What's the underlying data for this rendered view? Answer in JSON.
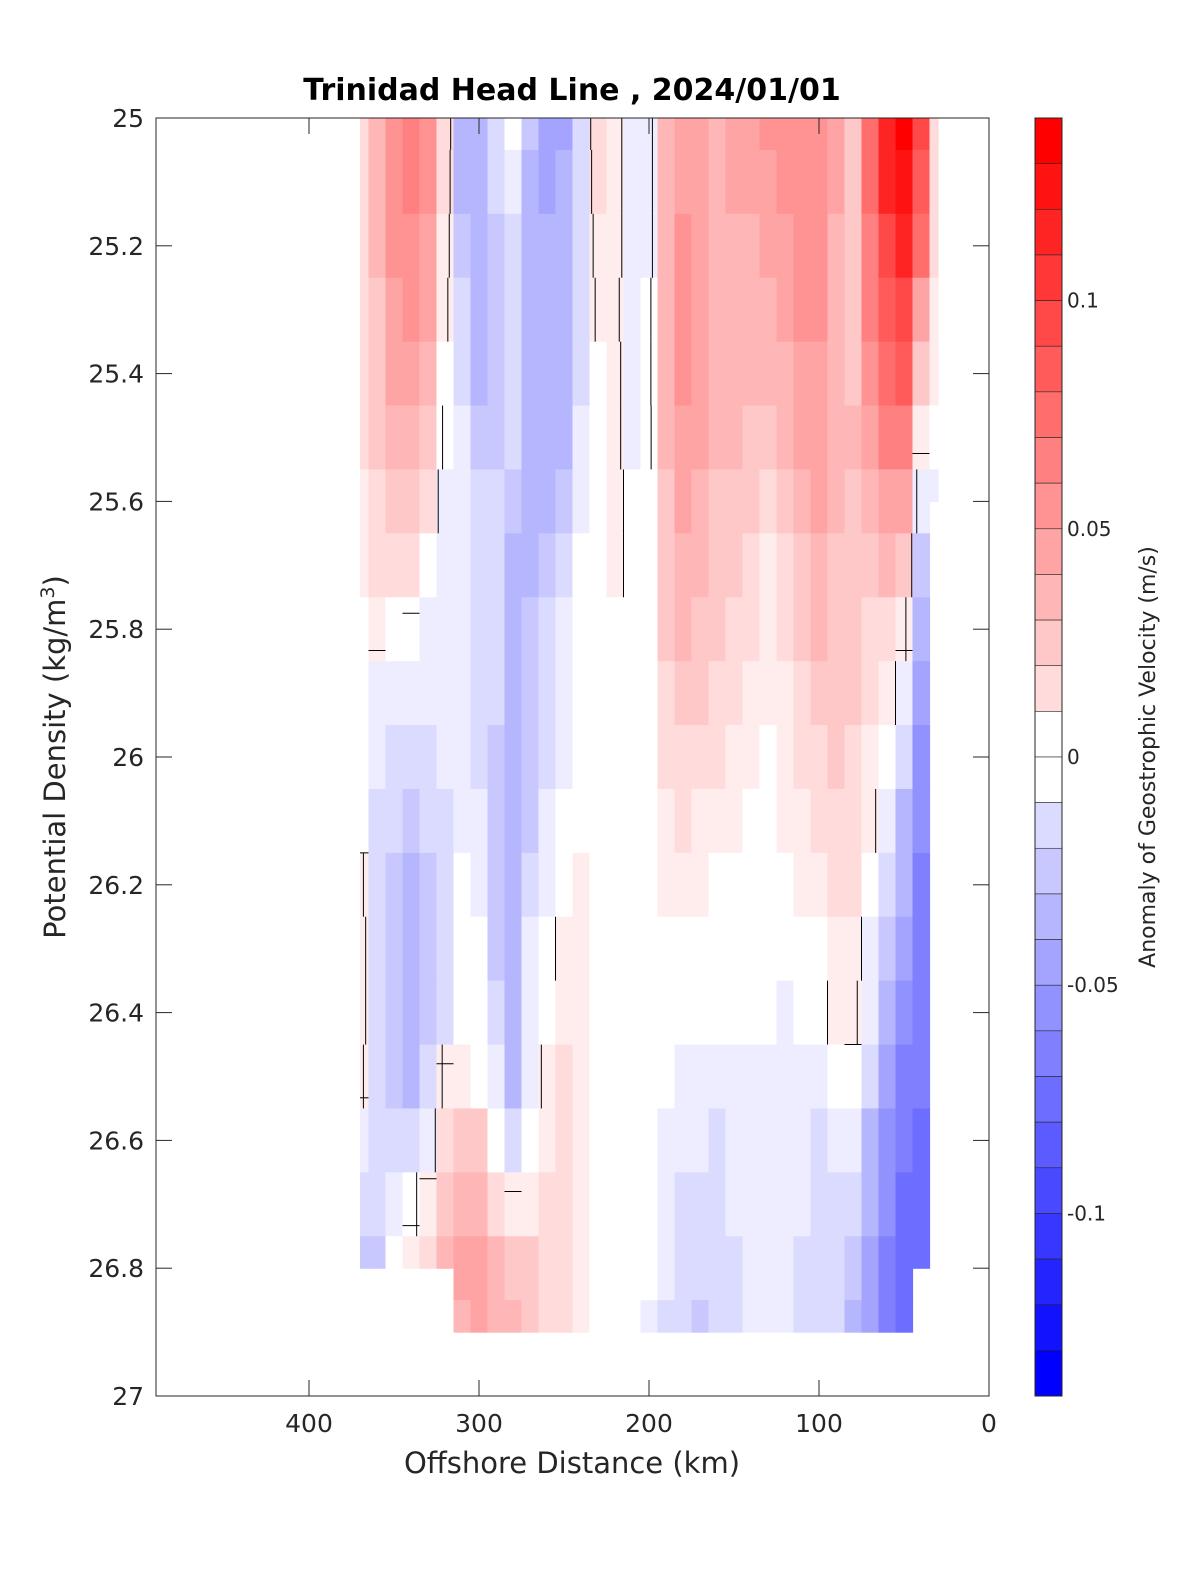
{
  "chart_data": {
    "type": "heatmap",
    "title": "Trinidad Head Line , 2024/01/01",
    "xlabel": "Offshore Distance (km)",
    "ylabel_main": "Potential Density (kg/m",
    "ylabel_sup": "3",
    "ylabel_close": ")",
    "xlim": [
      490,
      0
    ],
    "x_reversed": true,
    "ylim": [
      25,
      27
    ],
    "y_reversed": true,
    "xticks": [
      400,
      300,
      200,
      100,
      0
    ],
    "yticks": [
      25,
      25.2,
      25.4,
      25.6,
      25.8,
      26,
      26.2,
      26.4,
      26.6,
      26.8,
      27
    ],
    "ytick_labels": [
      "25",
      "25.2",
      "25.4",
      "25.6",
      "25.8",
      "26",
      "26.2",
      "26.4",
      "26.6",
      "26.8",
      "27"
    ],
    "grid": false,
    "contour_levels_step": 0.01,
    "zero_contour": "black",
    "colorbar": {
      "label": "Anomaly of Geostrophic Velocity (m/s)",
      "clim": [
        -0.14,
        0.14
      ],
      "ticks": [
        0.1,
        0.05,
        0,
        -0.05,
        -0.1
      ],
      "tick_labels": [
        "0.1",
        "0.05",
        "0",
        "-0.05",
        "-0.1"
      ],
      "colormap": "blue-white-red",
      "max_color": "#ff0000",
      "min_color": "#0000ff"
    },
    "data_extent": {
      "x_from": 370,
      "x_to": 30,
      "y_top": 25,
      "y_bottom": 26.9
    },
    "grid_x": [
      370,
      360,
      350,
      340,
      330,
      320,
      310,
      300,
      290,
      280,
      270,
      260,
      250,
      240,
      230,
      220,
      210,
      200,
      190,
      180,
      170,
      160,
      150,
      140,
      130,
      120,
      110,
      100,
      90,
      80,
      70,
      60,
      50,
      40,
      30
    ],
    "grid_y": [
      25.0,
      25.1,
      25.2,
      25.3,
      25.4,
      25.5,
      25.6,
      25.7,
      25.8,
      25.9,
      26.0,
      26.1,
      26.2,
      26.3,
      26.4,
      26.5,
      26.6,
      26.7,
      26.8,
      26.9
    ],
    "stations": [
      {
        "x": 370,
        "max_y": 26.8,
        "velocity": [
          0.02,
          0.02,
          0.02,
          0.02,
          0.015,
          0.015,
          0.01,
          0.01,
          0.0,
          -0.005,
          -0.005,
          -0.005,
          0.005,
          0.01,
          0.01,
          0.005,
          -0.01,
          -0.02,
          -0.03
        ]
      },
      {
        "x": 360,
        "max_y": 26.8,
        "velocity": [
          0.04,
          0.04,
          0.035,
          0.03,
          0.03,
          0.025,
          0.02,
          0.015,
          0.005,
          -0.01,
          -0.015,
          -0.02,
          -0.02,
          -0.02,
          -0.02,
          -0.02,
          -0.025,
          -0.025,
          -0.03
        ]
      },
      {
        "x": 350,
        "max_y": 26.8,
        "velocity": [
          0.06,
          0.06,
          0.055,
          0.05,
          0.045,
          0.04,
          0.03,
          0.02,
          0.0,
          -0.015,
          -0.02,
          -0.025,
          -0.03,
          -0.03,
          -0.03,
          -0.03,
          -0.02,
          -0.01,
          0.0
        ]
      },
      {
        "x": 340,
        "max_y": 26.8,
        "velocity": [
          0.07,
          0.065,
          0.06,
          0.055,
          0.05,
          0.04,
          0.03,
          0.015,
          -0.005,
          -0.015,
          -0.02,
          -0.03,
          -0.035,
          -0.035,
          -0.04,
          -0.035,
          -0.02,
          -0.005,
          0.01
        ]
      },
      {
        "x": 330,
        "max_y": 26.8,
        "velocity": [
          0.06,
          0.055,
          0.05,
          0.045,
          0.04,
          0.03,
          0.015,
          0.0,
          -0.01,
          -0.015,
          -0.02,
          -0.025,
          -0.03,
          -0.03,
          -0.03,
          -0.025,
          -0.015,
          0.01,
          0.02
        ]
      },
      {
        "x": 320,
        "max_y": 26.8,
        "velocity": [
          0.02,
          0.015,
          0.01,
          0.005,
          0.0,
          -0.005,
          -0.01,
          -0.015,
          -0.015,
          -0.015,
          -0.015,
          -0.02,
          -0.02,
          -0.02,
          -0.02,
          0.005,
          0.02,
          0.03,
          0.035
        ]
      },
      {
        "x": 310,
        "max_y": 26.9,
        "velocity": [
          -0.04,
          -0.035,
          -0.03,
          -0.025,
          -0.02,
          -0.015,
          -0.015,
          -0.015,
          -0.015,
          -0.015,
          -0.015,
          -0.01,
          -0.005,
          0.0,
          0.0,
          0.01,
          0.025,
          0.035,
          0.045,
          0.04
        ]
      },
      {
        "x": 300,
        "max_y": 26.9,
        "velocity": [
          -0.04,
          -0.045,
          -0.045,
          -0.04,
          -0.035,
          -0.03,
          -0.025,
          -0.02,
          -0.02,
          -0.02,
          -0.02,
          -0.015,
          -0.01,
          -0.005,
          -0.005,
          0.0,
          0.025,
          0.04,
          0.05,
          0.045
        ]
      },
      {
        "x": 290,
        "max_y": 26.9,
        "velocity": [
          -0.02,
          -0.025,
          -0.03,
          -0.03,
          -0.03,
          -0.03,
          -0.025,
          -0.025,
          -0.025,
          -0.025,
          -0.03,
          -0.03,
          -0.03,
          -0.03,
          -0.025,
          -0.015,
          0.0,
          0.02,
          0.035,
          0.04
        ]
      },
      {
        "x": 280,
        "max_y": 26.9,
        "velocity": [
          -0.005,
          -0.01,
          -0.02,
          -0.02,
          -0.02,
          -0.025,
          -0.03,
          -0.035,
          -0.035,
          -0.04,
          -0.04,
          -0.045,
          -0.045,
          -0.045,
          -0.045,
          -0.04,
          -0.02,
          0.005,
          0.03,
          0.035
        ]
      },
      {
        "x": 270,
        "max_y": 26.9,
        "velocity": [
          -0.03,
          -0.035,
          -0.035,
          -0.04,
          -0.04,
          -0.04,
          -0.04,
          -0.035,
          -0.03,
          -0.03,
          -0.03,
          -0.03,
          -0.02,
          -0.015,
          -0.015,
          -0.01,
          0.0,
          0.01,
          0.025,
          0.03
        ]
      },
      {
        "x": 260,
        "max_y": 26.9,
        "velocity": [
          -0.05,
          -0.05,
          -0.045,
          -0.045,
          -0.045,
          -0.04,
          -0.035,
          -0.03,
          -0.025,
          -0.02,
          -0.02,
          -0.015,
          -0.01,
          -0.005,
          0.0,
          0.005,
          0.01,
          0.015,
          0.02,
          0.02
        ]
      },
      {
        "x": 250,
        "max_y": 26.9,
        "velocity": [
          -0.05,
          -0.045,
          -0.045,
          -0.04,
          -0.04,
          -0.035,
          -0.03,
          -0.02,
          -0.015,
          -0.01,
          -0.01,
          -0.005,
          0.0,
          0.005,
          0.01,
          0.015,
          0.015,
          0.02,
          0.02,
          0.015
        ]
      },
      {
        "x": 240,
        "max_y": 26.9,
        "velocity": [
          -0.02,
          -0.025,
          -0.025,
          -0.025,
          -0.02,
          -0.015,
          -0.01,
          -0.005,
          0.0,
          0.0,
          0.0,
          0.0,
          0.005,
          0.005,
          0.005,
          0.005,
          0.005,
          0.005,
          0.005,
          0.005
        ]
      },
      {
        "x": 230,
        "max_y": 26.9,
        "velocity": [
          0.015,
          0.015,
          0.01,
          0.005,
          0.0,
          0.0,
          0.0,
          0.0,
          0.0,
          0.0,
          0.0,
          0.0,
          0.0,
          0.0,
          0.0,
          0.0,
          0.0,
          0.0,
          0.0,
          0.0
        ]
      },
      {
        "x": 220,
        "max_y": 26.9,
        "velocity": [
          0.01,
          0.01,
          0.01,
          0.005,
          0.005,
          0.005,
          0.005,
          0.005,
          0.0,
          0.0,
          0.0,
          0.0,
          0.0,
          0.0,
          0.0,
          0.0,
          0.0,
          0.0,
          0.0,
          0.0
        ]
      },
      {
        "x": 210,
        "max_y": 26.9,
        "velocity": [
          -0.015,
          -0.015,
          -0.015,
          -0.015,
          -0.01,
          -0.01,
          -0.005,
          -0.005,
          0.0,
          0.0,
          0.0,
          0.0,
          0.0,
          0.0,
          0.0,
          0.0,
          0.0,
          0.0,
          0.0,
          0.0
        ]
      },
      {
        "x": 200,
        "max_y": 26.9,
        "velocity": [
          -0.01,
          -0.01,
          -0.01,
          -0.005,
          -0.005,
          -0.005,
          0.0,
          0.0,
          0.0,
          0.0,
          0.0,
          0.0,
          0.0,
          0.0,
          0.0,
          0.0,
          0.0,
          0.0,
          -0.005,
          -0.01
        ]
      },
      {
        "x": 190,
        "max_y": 26.9,
        "velocity": [
          0.04,
          0.04,
          0.04,
          0.04,
          0.04,
          0.035,
          0.03,
          0.025,
          0.025,
          0.02,
          0.015,
          0.01,
          0.005,
          0.0,
          0.0,
          -0.005,
          -0.01,
          -0.015,
          -0.015,
          -0.02
        ]
      },
      {
        "x": 180,
        "max_y": 26.9,
        "velocity": [
          0.05,
          0.05,
          0.055,
          0.055,
          0.055,
          0.05,
          0.045,
          0.04,
          0.035,
          0.03,
          0.02,
          0.015,
          0.005,
          0.0,
          -0.005,
          -0.01,
          -0.015,
          -0.02,
          -0.025,
          -0.025
        ]
      },
      {
        "x": 170,
        "max_y": 26.9,
        "velocity": [
          0.045,
          0.045,
          0.05,
          0.05,
          0.05,
          0.045,
          0.04,
          0.035,
          0.03,
          0.025,
          0.02,
          0.01,
          0.005,
          0.0,
          -0.005,
          -0.01,
          -0.015,
          -0.02,
          -0.025,
          -0.03
        ]
      },
      {
        "x": 160,
        "max_y": 26.9,
        "velocity": [
          0.04,
          0.04,
          0.04,
          0.04,
          0.04,
          0.035,
          0.03,
          0.025,
          0.025,
          0.02,
          0.015,
          0.005,
          0.0,
          0.0,
          -0.005,
          -0.01,
          -0.02,
          -0.025,
          -0.025,
          -0.025
        ]
      },
      {
        "x": 150,
        "max_y": 26.9,
        "velocity": [
          0.045,
          0.045,
          0.04,
          0.04,
          0.035,
          0.035,
          0.03,
          0.025,
          0.02,
          0.015,
          0.01,
          0.005,
          0.0,
          0.0,
          -0.005,
          -0.01,
          -0.015,
          -0.015,
          -0.02,
          -0.02
        ]
      },
      {
        "x": 140,
        "max_y": 26.9,
        "velocity": [
          0.05,
          0.045,
          0.04,
          0.035,
          0.035,
          0.03,
          0.025,
          0.02,
          0.015,
          0.01,
          0.005,
          0.0,
          0.0,
          0.0,
          -0.005,
          -0.01,
          -0.015,
          -0.015,
          -0.015,
          -0.015
        ]
      },
      {
        "x": 130,
        "max_y": 26.9,
        "velocity": [
          0.055,
          0.05,
          0.045,
          0.04,
          0.035,
          0.03,
          0.015,
          0.01,
          0.01,
          0.005,
          0.0,
          0.0,
          0.0,
          -0.005,
          -0.005,
          -0.01,
          -0.01,
          -0.015,
          -0.015,
          -0.015
        ]
      },
      {
        "x": 120,
        "max_y": 26.9,
        "velocity": [
          0.055,
          0.055,
          0.05,
          0.045,
          0.04,
          0.035,
          0.025,
          0.02,
          0.015,
          0.01,
          0.005,
          0.005,
          0.0,
          -0.005,
          -0.01,
          -0.01,
          -0.015,
          -0.015,
          -0.015,
          -0.015
        ]
      },
      {
        "x": 110,
        "max_y": 26.9,
        "velocity": [
          0.06,
          0.06,
          0.055,
          0.055,
          0.05,
          0.045,
          0.04,
          0.03,
          0.025,
          0.02,
          0.015,
          0.01,
          0.005,
          0.0,
          -0.005,
          -0.01,
          -0.015,
          -0.015,
          -0.02,
          -0.02
        ]
      },
      {
        "x": 100,
        "max_y": 26.9,
        "velocity": [
          0.06,
          0.06,
          0.055,
          0.055,
          0.05,
          0.05,
          0.045,
          0.04,
          0.035,
          0.03,
          0.02,
          0.015,
          0.01,
          0.0,
          -0.005,
          -0.01,
          -0.02,
          -0.025,
          -0.025,
          -0.025
        ]
      },
      {
        "x": 90,
        "max_y": 26.9,
        "velocity": [
          0.045,
          0.045,
          0.04,
          0.04,
          0.04,
          0.04,
          0.035,
          0.03,
          0.03,
          0.03,
          0.025,
          0.02,
          0.015,
          0.01,
          0.005,
          0.0,
          -0.01,
          -0.02,
          -0.025,
          -0.025
        ]
      },
      {
        "x": 80,
        "max_y": 26.9,
        "velocity": [
          0.03,
          0.03,
          0.03,
          0.03,
          0.03,
          0.035,
          0.03,
          0.03,
          0.025,
          0.025,
          0.02,
          0.02,
          0.015,
          0.01,
          0.005,
          -0.005,
          -0.015,
          -0.025,
          -0.03,
          -0.035
        ]
      },
      {
        "x": 70,
        "max_y": 26.9,
        "velocity": [
          0.08,
          0.075,
          0.07,
          0.065,
          0.06,
          0.05,
          0.04,
          0.03,
          0.02,
          0.015,
          0.01,
          0.005,
          0.0,
          -0.01,
          -0.015,
          -0.025,
          -0.035,
          -0.04,
          -0.05,
          -0.055
        ]
      },
      {
        "x": 60,
        "max_y": 26.9,
        "velocity": [
          0.12,
          0.115,
          0.1,
          0.09,
          0.08,
          0.065,
          0.05,
          0.035,
          0.02,
          0.01,
          0.0,
          -0.01,
          -0.02,
          -0.03,
          -0.04,
          -0.05,
          -0.06,
          -0.065,
          -0.07,
          -0.07
        ]
      },
      {
        "x": 50,
        "max_y": 26.9,
        "velocity": [
          0.135,
          0.13,
          0.115,
          0.1,
          0.085,
          0.065,
          0.045,
          0.025,
          0.005,
          -0.01,
          -0.025,
          -0.035,
          -0.045,
          -0.055,
          -0.065,
          -0.07,
          -0.075,
          -0.08,
          -0.085,
          -0.085
        ]
      },
      {
        "x": 40,
        "max_y": 26.8,
        "velocity": [
          0.1,
          0.09,
          0.075,
          0.05,
          0.03,
          0.005,
          -0.015,
          -0.03,
          -0.04,
          -0.05,
          -0.06,
          -0.065,
          -0.07,
          -0.07,
          -0.075,
          -0.075,
          -0.08,
          -0.08,
          -0.085
        ]
      },
      {
        "x": 30,
        "max_y": 25.6,
        "velocity": [
          0.02,
          0.02,
          0.015,
          0.01,
          0.005,
          0.0,
          -0.01
        ]
      }
    ]
  }
}
